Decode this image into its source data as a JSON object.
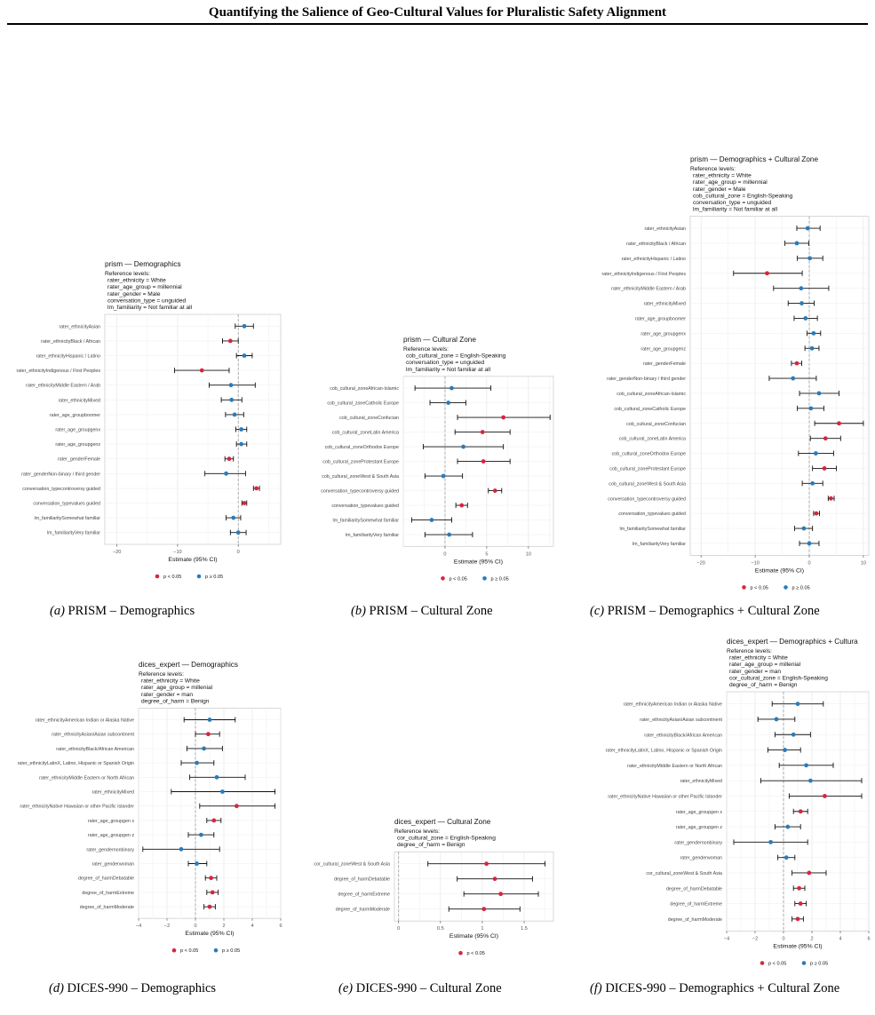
{
  "page": {
    "title": "Quantifying the Salience of Geo-Cultural Values for Pluralistic Safety Alignment"
  },
  "colors": {
    "significant": "#d7263d",
    "not_significant": "#2b7bb9"
  },
  "captions": [
    {
      "tag": "(a)",
      "text": "PRISM – Demographics"
    },
    {
      "tag": "(b)",
      "text": "PRISM – Cultural Zone"
    },
    {
      "tag": "(c)",
      "text": "PRISM – Demographics + Cultural Zone"
    },
    {
      "tag": "(d)",
      "text": "DICES-990 – Demographics"
    },
    {
      "tag": "(e)",
      "text": "DICES-990 – Cultural Zone"
    },
    {
      "tag": "(f)",
      "text": "DICES-990 – Demographics + Cultural Zone"
    }
  ],
  "chart_data": [
    {
      "type": "scatter",
      "title": "prism  —  Demographics",
      "ref_heading": "Reference levels:",
      "ref_lines": [
        "rater_ethnicity = White",
        "rater_age_group = millennial",
        "rater_gender = Male",
        "conversation_type = unguided",
        "lm_familiarity = Not familiar at all"
      ],
      "xlabel": "Estimate (95% CI)",
      "xlim": [
        -22,
        7
      ],
      "xticks": [
        -20,
        -10,
        0
      ],
      "legend": {
        "sig_label": "p < 0.05",
        "ns_label": "p ≥ 0.05"
      },
      "terms": [
        {
          "label": "rater_ethnicityAsian",
          "est": 1.0,
          "lo": -0.5,
          "hi": 2.5,
          "sig": false
        },
        {
          "label": "rater_ethnicityBlack / African",
          "est": -1.3,
          "lo": -2.6,
          "hi": 0.0,
          "sig": true
        },
        {
          "label": "rater_ethnicityHispanic / Latino",
          "est": 1.0,
          "lo": -0.3,
          "hi": 2.3,
          "sig": false
        },
        {
          "label": "rater_ethnicityIndigenous / First Peoples",
          "est": -6.0,
          "lo": -10.5,
          "hi": -1.5,
          "sig": true
        },
        {
          "label": "rater_ethnicityMiddle Eastern / Arab",
          "est": -1.2,
          "lo": -4.8,
          "hi": 2.8,
          "sig": false
        },
        {
          "label": "rater_ethnicityMixed",
          "est": -1.1,
          "lo": -2.8,
          "hi": 0.6,
          "sig": false
        },
        {
          "label": "rater_age_groupboomer",
          "est": -0.6,
          "lo": -2.1,
          "hi": 0.9,
          "sig": false
        },
        {
          "label": "rater_age_groupgenx",
          "est": 0.5,
          "lo": -0.4,
          "hi": 1.4,
          "sig": false
        },
        {
          "label": "rater_age_groupgenz",
          "est": 0.5,
          "lo": -0.3,
          "hi": 1.4,
          "sig": false
        },
        {
          "label": "rater_genderFemale",
          "est": -1.5,
          "lo": -2.2,
          "hi": -0.8,
          "sig": true
        },
        {
          "label": "rater_genderNon-binary / third gender",
          "est": -2.0,
          "lo": -5.5,
          "hi": 1.2,
          "sig": false
        },
        {
          "label": "conversation_typecontroversy guided",
          "est": 3.0,
          "lo": 2.5,
          "hi": 3.5,
          "sig": true
        },
        {
          "label": "conversation_typevalues guided",
          "est": 1.0,
          "lo": 0.6,
          "hi": 1.4,
          "sig": true
        },
        {
          "label": "lm_familiaritySomewhat familiar",
          "est": -0.8,
          "lo": -2.0,
          "hi": 0.4,
          "sig": false
        },
        {
          "label": "lm_familiarityVery familiar",
          "est": 0.0,
          "lo": -1.3,
          "hi": 1.3,
          "sig": false
        }
      ]
    },
    {
      "type": "scatter",
      "title": "prism  —  Cultural Zone",
      "ref_heading": "Reference levels:",
      "ref_lines": [
        "cob_cultural_zone = English-Speaking",
        "conversation_type = unguided",
        "lm_familiarity = Not familiar at all"
      ],
      "xlabel": "Estimate (95% CI)",
      "xlim": [
        -5,
        13
      ],
      "xticks": [
        0,
        5,
        10
      ],
      "legend": {
        "sig_label": "p < 0.05",
        "ns_label": "p ≥ 0.05"
      },
      "terms": [
        {
          "label": "cob_cultural_zoneAfrican-Islamic",
          "est": 0.8,
          "lo": -3.6,
          "hi": 5.5,
          "sig": false
        },
        {
          "label": "cob_cultural_zoneCatholic Europe",
          "est": 0.4,
          "lo": -1.8,
          "hi": 2.5,
          "sig": false
        },
        {
          "label": "cob_cultural_zoneConfucian",
          "est": 7.0,
          "lo": 1.5,
          "hi": 12.6,
          "sig": true
        },
        {
          "label": "cob_cultural_zoneLatin America",
          "est": 4.5,
          "lo": 1.2,
          "hi": 7.8,
          "sig": true
        },
        {
          "label": "cob_cultural_zoneOrthodox Europe",
          "est": 2.2,
          "lo": -2.6,
          "hi": 7.0,
          "sig": false
        },
        {
          "label": "cob_cultural_zoneProtestant Europe",
          "est": 4.6,
          "lo": 1.5,
          "hi": 7.8,
          "sig": true
        },
        {
          "label": "cob_cultural_zoneWest & South Asia",
          "est": -0.2,
          "lo": -2.4,
          "hi": 2.1,
          "sig": false
        },
        {
          "label": "conversation_typecontroversy guided",
          "est": 6.0,
          "lo": 5.2,
          "hi": 6.8,
          "sig": true
        },
        {
          "label": "conversation_typevalues guided",
          "est": 2.0,
          "lo": 1.3,
          "hi": 2.7,
          "sig": true
        },
        {
          "label": "lm_familiaritySomewhat familiar",
          "est": -1.6,
          "lo": -4.0,
          "hi": 0.8,
          "sig": false
        },
        {
          "label": "lm_familiarityVery familiar",
          "est": 0.5,
          "lo": -2.4,
          "hi": 3.3,
          "sig": false
        }
      ]
    },
    {
      "type": "scatter",
      "title": "prism  —  Demographics + Cultural Zone",
      "ref_heading": "Reference levels:",
      "ref_lines": [
        "rater_ethnicity = White",
        "rater_age_group = millennial",
        "rater_gender = Male",
        "cob_cultural_zone = English-Speaking",
        "conversation_type = unguided",
        "lm_familiarity = Not familiar at all"
      ],
      "xlabel": "Estimate (95% CI)",
      "xlim": [
        -22,
        11
      ],
      "xticks": [
        -20,
        -10,
        0,
        10
      ],
      "legend": {
        "sig_label": "p < 0.05",
        "ns_label": "p ≥ 0.05"
      },
      "terms": [
        {
          "label": "rater_ethnicityAsian",
          "est": -0.3,
          "lo": -2.3,
          "hi": 2.0,
          "sig": false
        },
        {
          "label": "rater_ethnicityBlack / African",
          "est": -2.3,
          "lo": -4.5,
          "hi": -0.1,
          "sig": false
        },
        {
          "label": "rater_ethnicityHispanic / Latino",
          "est": 0.1,
          "lo": -2.2,
          "hi": 2.5,
          "sig": false
        },
        {
          "label": "rater_ethnicityIndigenous / First Peoples",
          "est": -7.8,
          "lo": -14.0,
          "hi": -1.3,
          "sig": true
        },
        {
          "label": "rater_ethnicityMiddle Eastern / Arab",
          "est": -1.5,
          "lo": -6.6,
          "hi": 3.6,
          "sig": false
        },
        {
          "label": "rater_ethnicityMixed",
          "est": -1.4,
          "lo": -3.9,
          "hi": 0.9,
          "sig": false
        },
        {
          "label": "rater_age_groupboomer",
          "est": -0.7,
          "lo": -2.8,
          "hi": 1.5,
          "sig": false
        },
        {
          "label": "rater_age_groupgenx",
          "est": 0.8,
          "lo": -0.4,
          "hi": 2.1,
          "sig": false
        },
        {
          "label": "rater_age_groupgenz",
          "est": 0.5,
          "lo": -0.8,
          "hi": 1.8,
          "sig": false
        },
        {
          "label": "rater_genderFemale",
          "est": -2.3,
          "lo": -3.3,
          "hi": -1.4,
          "sig": true
        },
        {
          "label": "rater_genderNon-binary / third gender",
          "est": -3.0,
          "lo": -7.4,
          "hi": 1.3,
          "sig": false
        },
        {
          "label": "cob_cultural_zoneAfrican-Islamic",
          "est": 1.8,
          "lo": -1.8,
          "hi": 5.5,
          "sig": false
        },
        {
          "label": "cob_cultural_zoneCatholic Europe",
          "est": 0.3,
          "lo": -2.2,
          "hi": 2.7,
          "sig": false
        },
        {
          "label": "cob_cultural_zoneConfucian",
          "est": 5.5,
          "lo": 1.0,
          "hi": 10.0,
          "sig": true
        },
        {
          "label": "cob_cultural_zoneLatin America",
          "est": 3.0,
          "lo": 0.2,
          "hi": 5.8,
          "sig": true
        },
        {
          "label": "cob_cultural_zoneOrthodox Europe",
          "est": 1.2,
          "lo": -2.0,
          "hi": 4.5,
          "sig": false
        },
        {
          "label": "cob_cultural_zoneProtestant Europe",
          "est": 2.8,
          "lo": 0.6,
          "hi": 5.0,
          "sig": true
        },
        {
          "label": "cob_cultural_zoneWest & South Asia",
          "est": 0.6,
          "lo": -1.3,
          "hi": 2.5,
          "sig": false
        },
        {
          "label": "conversation_typecontroversy guided",
          "est": 4.0,
          "lo": 3.5,
          "hi": 4.6,
          "sig": true
        },
        {
          "label": "conversation_typevalues guided",
          "est": 1.3,
          "lo": 0.8,
          "hi": 1.9,
          "sig": true
        },
        {
          "label": "lm_familiaritySomewhat familiar",
          "est": -1.0,
          "lo": -2.7,
          "hi": 0.6,
          "sig": false
        },
        {
          "label": "lm_familiarityVery familiar",
          "est": 0.0,
          "lo": -1.8,
          "hi": 1.8,
          "sig": false
        }
      ]
    },
    {
      "type": "scatter",
      "title": "dices_expert  —  Demographics",
      "ref_heading": "Reference levels:",
      "ref_lines": [
        "rater_ethnicity = White",
        "rater_age_group = millenial",
        "rater_gender = man",
        "degree_of_harm = Benign"
      ],
      "xlabel": "Estimate (95% CI)",
      "xlim": [
        -4,
        6
      ],
      "xticks": [
        -4,
        -2,
        0,
        2,
        4,
        6
      ],
      "legend": {
        "sig_label": "p < 0.05",
        "ns_label": "p ≥ 0.05"
      },
      "terms": [
        {
          "label": "rater_ethnicityAmerican Indian or Alaska Native",
          "est": 1.0,
          "lo": -0.8,
          "hi": 2.8,
          "sig": false
        },
        {
          "label": "rater_ethnicityAsian/Asian subcontinent",
          "est": 0.9,
          "lo": 0.0,
          "hi": 1.7,
          "sig": true
        },
        {
          "label": "rater_ethnicityBlack/African American",
          "est": 0.6,
          "lo": -0.6,
          "hi": 1.9,
          "sig": false
        },
        {
          "label": "rater_ethnicityLatinX, Latino, Hispanic or Spanish Origin",
          "est": 0.1,
          "lo": -1.0,
          "hi": 1.3,
          "sig": false
        },
        {
          "label": "rater_ethnicityMiddle Eastern or North African",
          "est": 1.5,
          "lo": -0.4,
          "hi": 3.5,
          "sig": false
        },
        {
          "label": "rater_ethnicityMixed",
          "est": 1.9,
          "lo": -1.7,
          "hi": 5.6,
          "sig": false
        },
        {
          "label": "rater_ethnicityNative Hawaiian or other Pacific Islander",
          "est": 2.9,
          "lo": 0.3,
          "hi": 5.6,
          "sig": true
        },
        {
          "label": "rater_age_groupgen x",
          "est": 1.3,
          "lo": 0.8,
          "hi": 1.8,
          "sig": true
        },
        {
          "label": "rater_age_groupgen z",
          "est": 0.4,
          "lo": -0.5,
          "hi": 1.3,
          "sig": false
        },
        {
          "label": "rater_gendernonbinary",
          "est": -1.0,
          "lo": -3.7,
          "hi": 1.7,
          "sig": false
        },
        {
          "label": "rater_genderwoman",
          "est": 0.1,
          "lo": -0.5,
          "hi": 0.8,
          "sig": false
        },
        {
          "label": "degree_of_harmDebatable",
          "est": 1.1,
          "lo": 0.7,
          "hi": 1.5,
          "sig": true
        },
        {
          "label": "degree_of_harmExtreme",
          "est": 1.2,
          "lo": 0.8,
          "hi": 1.6,
          "sig": true
        },
        {
          "label": "degree_of_harmModerate",
          "est": 1.0,
          "lo": 0.6,
          "hi": 1.4,
          "sig": true
        }
      ]
    },
    {
      "type": "scatter",
      "title": "dices_expert  —  Cultural Zone",
      "ref_heading": "Reference levels:",
      "ref_lines": [
        "cor_cultural_zone = English-Speaking",
        "degree_of_harm = Benign"
      ],
      "xlabel": "Estimate (95% CI)",
      "xlim": [
        -0.05,
        1.85
      ],
      "xticks": [
        0.0,
        0.5,
        1.0,
        1.5
      ],
      "legend": {
        "sig_label": "p < 0.05"
      },
      "terms": [
        {
          "label": "cor_cultural_zoneWest & South Asia",
          "est": 1.05,
          "lo": 0.35,
          "hi": 1.75,
          "sig": true
        },
        {
          "label": "degree_of_harmDebatable",
          "est": 1.15,
          "lo": 0.7,
          "hi": 1.6,
          "sig": true
        },
        {
          "label": "degree_of_harmExtreme",
          "est": 1.22,
          "lo": 0.78,
          "hi": 1.67,
          "sig": true
        },
        {
          "label": "degree_of_harmModerate",
          "est": 1.02,
          "lo": 0.6,
          "hi": 1.45,
          "sig": true
        }
      ]
    },
    {
      "type": "scatter",
      "title": "dices_expert  —  Demographics + Cultura",
      "ref_heading": "Reference levels:",
      "ref_lines": [
        "rater_ethnicity = White",
        "rater_age_group = millenial",
        "rater_gender = man",
        "cor_cultural_zone = English-Speaking",
        "degree_of_harm = Benign"
      ],
      "xlabel": "Estimate (95% CI)",
      "xlim": [
        -4,
        6
      ],
      "xticks": [
        -4,
        -2,
        0,
        2,
        4,
        6
      ],
      "legend": {
        "sig_label": "p < 0.05",
        "ns_label": "p ≥ 0.05"
      },
      "terms": [
        {
          "label": "rater_ethnicityAmerican Indian or Alaska Native",
          "est": 1.0,
          "lo": -0.8,
          "hi": 2.8,
          "sig": false
        },
        {
          "label": "rater_ethnicityAsian/Asian subcontinent",
          "est": -0.5,
          "lo": -1.8,
          "hi": 0.8,
          "sig": false
        },
        {
          "label": "rater_ethnicityBlack/African American",
          "est": 0.7,
          "lo": -0.6,
          "hi": 1.9,
          "sig": false
        },
        {
          "label": "rater_ethnicityLatinX, Latino, Hispanic or Spanish Origin",
          "est": 0.1,
          "lo": -1.1,
          "hi": 1.2,
          "sig": false
        },
        {
          "label": "rater_ethnicityMiddle Eastern or North African",
          "est": 1.6,
          "lo": -0.3,
          "hi": 3.5,
          "sig": false
        },
        {
          "label": "rater_ethnicityMixed",
          "est": 1.9,
          "lo": -1.6,
          "hi": 5.5,
          "sig": false
        },
        {
          "label": "rater_ethnicityNative Hawaiian or other Pacific Islander",
          "est": 2.9,
          "lo": 0.4,
          "hi": 5.5,
          "sig": true
        },
        {
          "label": "rater_age_groupgen x",
          "est": 1.2,
          "lo": 0.7,
          "hi": 1.7,
          "sig": true
        },
        {
          "label": "rater_age_groupgen z",
          "est": 0.3,
          "lo": -0.6,
          "hi": 1.2,
          "sig": false
        },
        {
          "label": "rater_gendernonbinary",
          "est": -0.9,
          "lo": -3.5,
          "hi": 1.7,
          "sig": false
        },
        {
          "label": "rater_genderwoman",
          "est": 0.2,
          "lo": -0.4,
          "hi": 0.8,
          "sig": false
        },
        {
          "label": "cor_cultural_zoneWest & South Asia",
          "est": 1.8,
          "lo": 0.6,
          "hi": 3.0,
          "sig": true
        },
        {
          "label": "degree_of_harmDebatable",
          "est": 1.1,
          "lo": 0.7,
          "hi": 1.5,
          "sig": true
        },
        {
          "label": "degree_of_harmExtreme",
          "est": 1.2,
          "lo": 0.8,
          "hi": 1.6,
          "sig": true
        },
        {
          "label": "degree_of_harmModerate",
          "est": 1.0,
          "lo": 0.6,
          "hi": 1.4,
          "sig": true
        }
      ]
    }
  ]
}
